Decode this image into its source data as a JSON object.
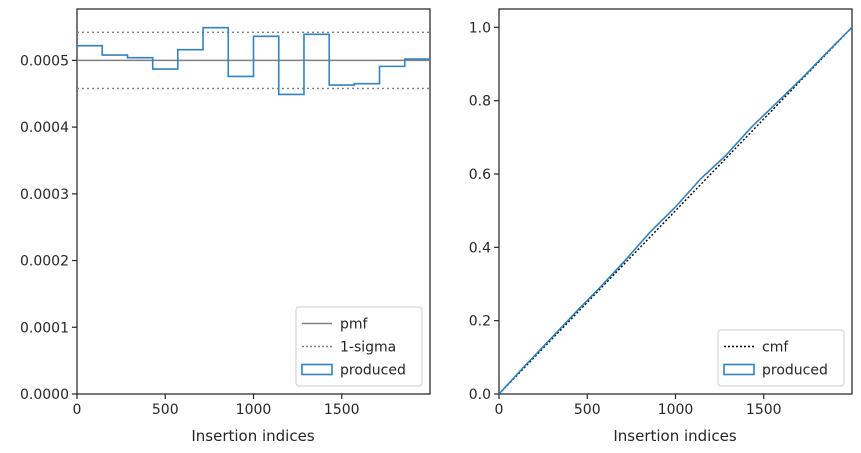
{
  "chart_data": [
    {
      "type": "histogram",
      "xlabel": "Insertion indices",
      "ylabel": "",
      "xlim": [
        0,
        2000
      ],
      "ylim": [
        0,
        0.000577
      ],
      "xticks": [
        0,
        500,
        1000,
        1500
      ],
      "xtick_labels": [
        "0",
        "500",
        "1000",
        "1500"
      ],
      "yticks": [
        0,
        0.0001,
        0.0002,
        0.0003,
        0.0004,
        0.0005
      ],
      "ytick_labels": [
        "0.0000",
        "0.0001",
        "0.0002",
        "0.0003",
        "0.0004",
        "0.0005"
      ],
      "legend_position": "lower-right",
      "series": [
        {
          "name": "pmf",
          "style": "solid-line",
          "color": "#808080",
          "x": [
            0,
            2000
          ],
          "y": [
            0.0005,
            0.0005
          ]
        },
        {
          "name": "1-sigma",
          "style": "dotted-line",
          "color": "#808080",
          "lines": [
            0.000542,
            0.000458
          ]
        },
        {
          "name": "produced",
          "style": "step",
          "color": "#3182bd",
          "bin_edges": [
            0,
            143,
            286,
            429,
            571,
            714,
            857,
            1000,
            1143,
            1286,
            1429,
            1571,
            1714,
            1857,
            2000
          ],
          "values": [
            0.000522,
            0.000508,
            0.000504,
            0.000487,
            0.000516,
            0.000549,
            0.000476,
            0.000536,
            0.000449,
            0.000539,
            0.000463,
            0.000465,
            0.000491,
            0.000502
          ]
        }
      ]
    },
    {
      "type": "line",
      "xlabel": "Insertion indices",
      "ylabel": "",
      "xlim": [
        0,
        2000
      ],
      "ylim": [
        0,
        1.05
      ],
      "xticks": [
        0,
        500,
        1000,
        1500
      ],
      "xtick_labels": [
        "0",
        "500",
        "1000",
        "1500"
      ],
      "yticks": [
        0,
        0.2,
        0.4,
        0.6,
        0.8,
        1.0
      ],
      "ytick_labels": [
        "0.0",
        "0.2",
        "0.4",
        "0.6",
        "0.8",
        "1.0"
      ],
      "legend_position": "lower-right",
      "series": [
        {
          "name": "cmf",
          "style": "dotted-line",
          "color": "#000000",
          "x": [
            0,
            2000
          ],
          "y": [
            0,
            1.0
          ]
        },
        {
          "name": "produced",
          "style": "solid-line",
          "color": "#3182bd",
          "x": [
            0,
            143,
            286,
            429,
            571,
            714,
            857,
            1000,
            1143,
            1286,
            1429,
            1571,
            1714,
            1857,
            2000
          ],
          "y": [
            0,
            0.075,
            0.147,
            0.22,
            0.29,
            0.364,
            0.442,
            0.51,
            0.587,
            0.651,
            0.727,
            0.793,
            0.86,
            0.931,
            1.0
          ]
        }
      ]
    }
  ]
}
